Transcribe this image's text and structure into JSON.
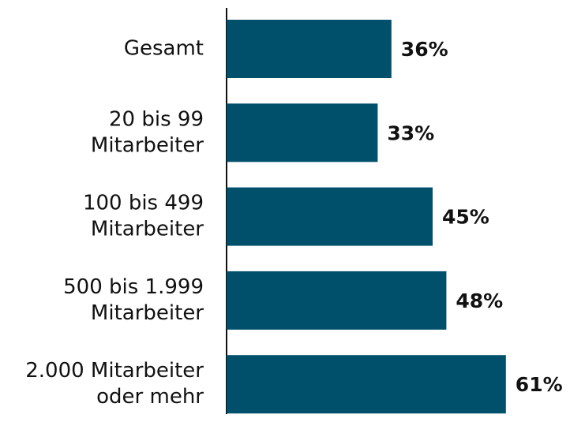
{
  "chart_data": {
    "type": "bar",
    "orientation": "horizontal",
    "categories": [
      [
        "Gesamt"
      ],
      [
        "20 bis 99",
        "Mitarbeiter"
      ],
      [
        "100 bis 499",
        "Mitarbeiter"
      ],
      [
        "500 bis 1.999",
        "Mitarbeiter"
      ],
      [
        "2.000 Mitarbeiter",
        "oder mehr"
      ]
    ],
    "values": [
      36,
      33,
      45,
      48,
      61
    ],
    "value_labels": [
      "36%",
      "33%",
      "45%",
      "48%",
      "61%"
    ],
    "color": "#004f6b"
  }
}
